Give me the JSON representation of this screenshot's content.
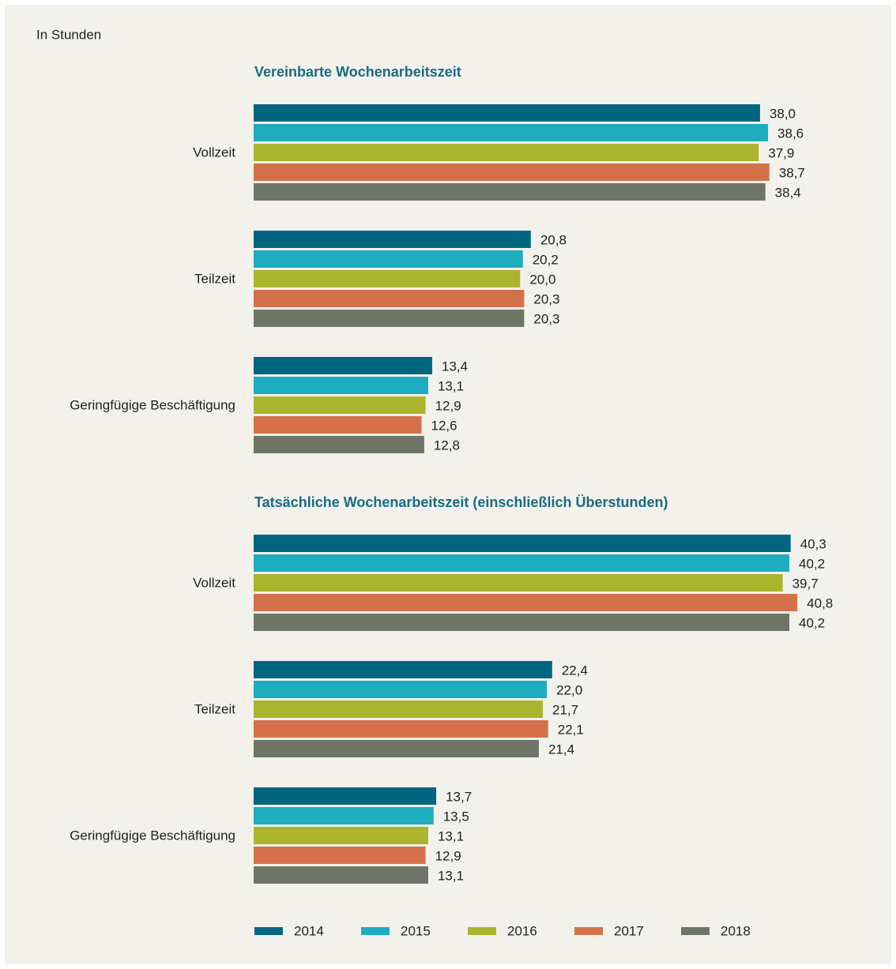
{
  "chart_data": [
    {
      "type": "bar",
      "orientation": "horizontal",
      "subtitle": "In Stunden",
      "title": "Vereinbarte Wochenarbeitszeit",
      "categories": [
        "Vollzeit",
        "Teilzeit",
        "Geringfügige Beschäftigung"
      ],
      "xlim": [
        0,
        45
      ],
      "legend": "bottom",
      "series": [
        {
          "name": "2014",
          "color": "#006680",
          "values": [
            38.0,
            20.8,
            13.4
          ],
          "value_labels": [
            "38,0",
            "20,8",
            "13,4"
          ]
        },
        {
          "name": "2015",
          "color": "#1eacbf",
          "values": [
            38.6,
            20.2,
            13.1
          ],
          "value_labels": [
            "38,6",
            "20,2",
            "13,1"
          ]
        },
        {
          "name": "2016",
          "color": "#aab52d",
          "values": [
            37.9,
            20.0,
            12.9
          ],
          "value_labels": [
            "37,9",
            "20,0",
            "12,9"
          ]
        },
        {
          "name": "2017",
          "color": "#d4714a",
          "values": [
            38.7,
            20.3,
            12.6
          ],
          "value_labels": [
            "38,7",
            "20,3",
            "12,6"
          ]
        },
        {
          "name": "2018",
          "color": "#6f7566",
          "values": [
            38.4,
            20.3,
            12.8
          ],
          "value_labels": [
            "38,4",
            "20,3",
            "12,8"
          ]
        }
      ]
    },
    {
      "type": "bar",
      "orientation": "horizontal",
      "title": "Tatsächliche Wochenarbeitszeit (einschließlich Überstunden)",
      "categories": [
        "Vollzeit",
        "Teilzeit",
        "Geringfügige Beschäftigung"
      ],
      "xlim": [
        0,
        45
      ],
      "series": [
        {
          "color": "#006680",
          "values": [
            40.3,
            22.4,
            13.7
          ],
          "value_labels": [
            "40,3",
            "22,4",
            "13,7"
          ]
        },
        {
          "color": "#1eacbf",
          "values": [
            40.2,
            22.0,
            13.5
          ],
          "value_labels": [
            "40,2",
            "22,0",
            "13,5"
          ]
        },
        {
          "color": "#aab52d",
          "values": [
            39.7,
            21.7,
            13.1
          ],
          "value_labels": [
            "39,7",
            "21,7",
            "13,1"
          ]
        },
        {
          "color": "#d4714a",
          "values": [
            40.8,
            22.1,
            12.9
          ],
          "value_labels": [
            "40,8",
            "22,1",
            "12,9"
          ]
        },
        {
          "color": "#6f7566",
          "values": [
            40.2,
            21.4,
            13.1
          ],
          "value_labels": [
            "40,2",
            "21,4",
            "13,1"
          ]
        }
      ]
    }
  ]
}
